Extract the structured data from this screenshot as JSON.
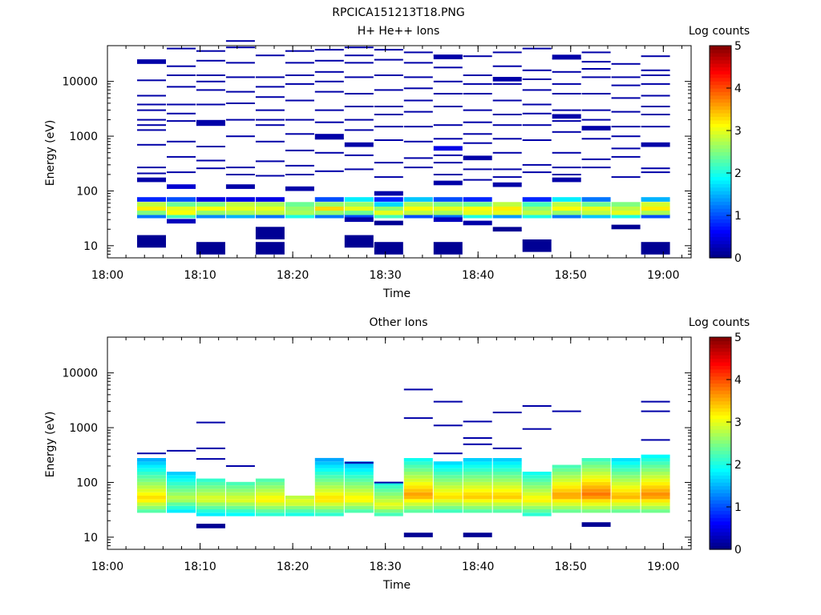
{
  "page_title": "RPCICA151213T18.PNG",
  "chart_data": [
    {
      "type": "heatmap",
      "title": "H+ He++ Ions",
      "xlabel": "Time",
      "ylabel": "Energy (eV)",
      "yscale": "log",
      "ylim": [
        6,
        45000
      ],
      "xlim": [
        "18:00",
        "19:03"
      ],
      "x_ticks": [
        "18:00",
        "18:10",
        "18:20",
        "18:30",
        "18:40",
        "18:50",
        "19:00"
      ],
      "y_ticks": [
        "10",
        "100",
        "1000",
        "10000"
      ],
      "colorbar": {
        "label": "Log counts",
        "min": 0,
        "max": 5,
        "ticks": [
          "0",
          "1",
          "2",
          "3",
          "4",
          "5"
        ]
      },
      "time_bins_start_min": [
        3.2,
        6.4,
        9.6,
        12.8,
        16.0,
        19.2,
        22.4,
        25.6,
        28.8,
        32.0,
        35.2,
        38.4,
        41.6,
        44.8,
        48.0,
        51.2,
        54.4,
        57.6
      ],
      "bin_width_min": 3.2,
      "cells": [
        {
          "t": 0,
          "e": 35,
          "v": 1.2
        },
        {
          "t": 0,
          "e": 40,
          "v": 2.5
        },
        {
          "t": 0,
          "e": 48,
          "v": 3.2
        },
        {
          "t": 0,
          "e": 57,
          "v": 2.8
        },
        {
          "t": 0,
          "e": 70,
          "v": 0.8
        },
        {
          "t": 1,
          "e": 35,
          "v": 2.2
        },
        {
          "t": 1,
          "e": 40,
          "v": 3.1
        },
        {
          "t": 1,
          "e": 48,
          "v": 3.0
        },
        {
          "t": 1,
          "e": 57,
          "v": 2.4
        },
        {
          "t": 1,
          "e": 70,
          "v": 1.0
        },
        {
          "t": 2,
          "e": 35,
          "v": 1.3
        },
        {
          "t": 2,
          "e": 40,
          "v": 2.6
        },
        {
          "t": 2,
          "e": 48,
          "v": 3.1
        },
        {
          "t": 2,
          "e": 57,
          "v": 2.5
        },
        {
          "t": 2,
          "e": 70,
          "v": 0.5
        },
        {
          "t": 3,
          "e": 35,
          "v": 1.5
        },
        {
          "t": 3,
          "e": 40,
          "v": 2.7
        },
        {
          "t": 3,
          "e": 48,
          "v": 3.0
        },
        {
          "t": 3,
          "e": 57,
          "v": 2.8
        },
        {
          "t": 3,
          "e": 70,
          "v": 0.5
        },
        {
          "t": 4,
          "e": 35,
          "v": 1.2
        },
        {
          "t": 4,
          "e": 40,
          "v": 2.8
        },
        {
          "t": 4,
          "e": 48,
          "v": 3.0
        },
        {
          "t": 4,
          "e": 57,
          "v": 2.7
        },
        {
          "t": 4,
          "e": 70,
          "v": 0.5
        },
        {
          "t": 5,
          "e": 35,
          "v": 2.0
        },
        {
          "t": 5,
          "e": 40,
          "v": 2.7
        },
        {
          "t": 5,
          "e": 48,
          "v": 2.6
        },
        {
          "t": 5,
          "e": 57,
          "v": 2.4
        },
        {
          "t": 6,
          "e": 35,
          "v": 1.2
        },
        {
          "t": 6,
          "e": 40,
          "v": 2.6
        },
        {
          "t": 6,
          "e": 48,
          "v": 3.3
        },
        {
          "t": 6,
          "e": 57,
          "v": 2.6
        },
        {
          "t": 6,
          "e": 70,
          "v": 1.0
        },
        {
          "t": 7,
          "e": 35,
          "v": 1.0
        },
        {
          "t": 7,
          "e": 40,
          "v": 2.4
        },
        {
          "t": 7,
          "e": 48,
          "v": 3.0
        },
        {
          "t": 7,
          "e": 57,
          "v": 2.6
        },
        {
          "t": 7,
          "e": 70,
          "v": 1.8
        },
        {
          "t": 8,
          "e": 35,
          "v": 2.2
        },
        {
          "t": 8,
          "e": 40,
          "v": 3.0
        },
        {
          "t": 8,
          "e": 48,
          "v": 2.6
        },
        {
          "t": 8,
          "e": 57,
          "v": 1.7
        },
        {
          "t": 8,
          "e": 70,
          "v": 0.8
        },
        {
          "t": 9,
          "e": 35,
          "v": 1.0
        },
        {
          "t": 9,
          "e": 40,
          "v": 2.8
        },
        {
          "t": 9,
          "e": 48,
          "v": 3.1
        },
        {
          "t": 9,
          "e": 57,
          "v": 2.7
        },
        {
          "t": 9,
          "e": 70,
          "v": 1.6
        },
        {
          "t": 10,
          "e": 35,
          "v": 1.2
        },
        {
          "t": 10,
          "e": 40,
          "v": 2.7
        },
        {
          "t": 10,
          "e": 48,
          "v": 3.0
        },
        {
          "t": 10,
          "e": 57,
          "v": 2.5
        },
        {
          "t": 10,
          "e": 70,
          "v": 1.0
        },
        {
          "t": 11,
          "e": 35,
          "v": 2.0
        },
        {
          "t": 11,
          "e": 40,
          "v": 3.0
        },
        {
          "t": 11,
          "e": 48,
          "v": 3.1
        },
        {
          "t": 11,
          "e": 57,
          "v": 2.4
        },
        {
          "t": 11,
          "e": 70,
          "v": 0.8
        },
        {
          "t": 12,
          "e": 35,
          "v": 1.4
        },
        {
          "t": 12,
          "e": 40,
          "v": 3.0
        },
        {
          "t": 12,
          "e": 48,
          "v": 3.2
        },
        {
          "t": 12,
          "e": 57,
          "v": 2.8
        },
        {
          "t": 13,
          "e": 35,
          "v": 2.0
        },
        {
          "t": 13,
          "e": 40,
          "v": 2.8
        },
        {
          "t": 13,
          "e": 48,
          "v": 2.6
        },
        {
          "t": 13,
          "e": 57,
          "v": 2.2
        },
        {
          "t": 13,
          "e": 70,
          "v": 0.8
        },
        {
          "t": 14,
          "e": 35,
          "v": 1.2
        },
        {
          "t": 14,
          "e": 40,
          "v": 2.6
        },
        {
          "t": 14,
          "e": 48,
          "v": 3.1
        },
        {
          "t": 14,
          "e": 57,
          "v": 2.8
        },
        {
          "t": 14,
          "e": 70,
          "v": 1.8
        },
        {
          "t": 15,
          "e": 35,
          "v": 1.6
        },
        {
          "t": 15,
          "e": 40,
          "v": 2.8
        },
        {
          "t": 15,
          "e": 48,
          "v": 3.0
        },
        {
          "t": 15,
          "e": 57,
          "v": 2.4
        },
        {
          "t": 15,
          "e": 70,
          "v": 1.2
        },
        {
          "t": 16,
          "e": 35,
          "v": 2.0
        },
        {
          "t": 16,
          "e": 40,
          "v": 3.0
        },
        {
          "t": 16,
          "e": 48,
          "v": 2.8
        },
        {
          "t": 16,
          "e": 57,
          "v": 2.5
        },
        {
          "t": 17,
          "e": 35,
          "v": 1.0
        },
        {
          "t": 17,
          "e": 40,
          "v": 2.7
        },
        {
          "t": 17,
          "e": 48,
          "v": 3.2
        },
        {
          "t": 17,
          "e": 57,
          "v": 2.9
        },
        {
          "t": 17,
          "e": 70,
          "v": 1.5
        },
        {
          "t": 0,
          "e": 12,
          "v": 0.1
        },
        {
          "t": 2,
          "e": 9,
          "v": 0.1
        },
        {
          "t": 4,
          "e": 9,
          "v": 0.1
        },
        {
          "t": 4,
          "e": 17,
          "v": 0.1
        },
        {
          "t": 7,
          "e": 12,
          "v": 0.1
        },
        {
          "t": 8,
          "e": 9,
          "v": 0.1
        },
        {
          "t": 10,
          "e": 9,
          "v": 0.1
        },
        {
          "t": 13,
          "e": 10,
          "v": 0.1
        },
        {
          "t": 16,
          "e": 22,
          "v": 0.1
        },
        {
          "t": 17,
          "e": 9,
          "v": 0.1
        },
        {
          "t": 12,
          "e": 20,
          "v": 0.1
        },
        {
          "t": 8,
          "e": 26,
          "v": 0.1
        },
        {
          "t": 7,
          "e": 30,
          "v": 0.2
        },
        {
          "t": 10,
          "e": 30,
          "v": 0.3
        },
        {
          "t": 11,
          "e": 26,
          "v": 0.2
        },
        {
          "t": 1,
          "e": 28,
          "v": 0.3
        },
        {
          "t": 0,
          "e": 160,
          "v": 0.2
        },
        {
          "t": 1,
          "e": 120,
          "v": 0.4
        },
        {
          "t": 3,
          "e": 120,
          "v": 0.2
        },
        {
          "t": 5,
          "e": 110,
          "v": 0.2
        },
        {
          "t": 8,
          "e": 90,
          "v": 0.2
        },
        {
          "t": 10,
          "e": 140,
          "v": 0.2
        },
        {
          "t": 12,
          "e": 130,
          "v": 0.2
        },
        {
          "t": 14,
          "e": 160,
          "v": 0.2
        },
        {
          "t": 10,
          "e": 600,
          "v": 0.5
        },
        {
          "t": 11,
          "e": 400,
          "v": 0.2
        },
        {
          "t": 6,
          "e": 1000,
          "v": 0.2
        },
        {
          "t": 2,
          "e": 1800,
          "v": 0.2
        },
        {
          "t": 14,
          "e": 2300,
          "v": 0.2
        },
        {
          "t": 15,
          "e": 1400,
          "v": 0.2
        },
        {
          "t": 17,
          "e": 700,
          "v": 0.2
        },
        {
          "t": 0,
          "e": 23000,
          "v": 0.2
        },
        {
          "t": 10,
          "e": 28000,
          "v": 0.2
        },
        {
          "t": 14,
          "e": 28000,
          "v": 0.2
        },
        {
          "t": 12,
          "e": 11000,
          "v": 0.2
        },
        {
          "t": 7,
          "e": 700,
          "v": 0.2
        }
      ],
      "sparse_lines": {
        "value": 0.2,
        "bins_per_column": [
          [
            5500,
            3000,
            2000,
            1600,
            1300,
            700,
            270,
            210,
            10500,
            3800
          ],
          [
            40000,
            19000,
            8000,
            3800,
            2600,
            1900,
            800,
            420,
            220,
            13000
          ],
          [
            36000,
            24000,
            13000,
            10000,
            7000,
            3800,
            1600,
            650,
            360,
            260
          ],
          [
            42000,
            22000,
            12000,
            6500,
            4000,
            2000,
            1000,
            270,
            200,
            55000
          ],
          [
            30000,
            12000,
            8000,
            5200,
            3000,
            1600,
            800,
            350,
            190,
            2000
          ],
          [
            36000,
            22000,
            9000,
            4500,
            2000,
            1100,
            550,
            290,
            200,
            13000
          ],
          [
            38000,
            24000,
            10000,
            6500,
            3000,
            1800,
            900,
            500,
            230,
            15000
          ],
          [
            42000,
            30000,
            12000,
            6000,
            3500,
            2000,
            1300,
            450,
            250,
            22000
          ],
          [
            38000,
            25000,
            7000,
            3500,
            2500,
            1500,
            850,
            330,
            180,
            13000
          ],
          [
            34000,
            22000,
            12000,
            7500,
            4500,
            2800,
            1500,
            800,
            400,
            270
          ],
          [
            30000,
            18000,
            10000,
            6000,
            3500,
            1600,
            900,
            450,
            330,
            200
          ],
          [
            29000,
            13000,
            6000,
            3000,
            1800,
            1100,
            750,
            250,
            160,
            9000
          ],
          [
            34000,
            19000,
            9000,
            4500,
            2500,
            1600,
            900,
            500,
            250,
            180
          ],
          [
            40000,
            16000,
            7000,
            3800,
            2600,
            1600,
            850,
            300,
            220,
            11000
          ],
          [
            26000,
            15000,
            6000,
            3000,
            1900,
            1200,
            500,
            270,
            200,
            9000
          ],
          [
            34000,
            23000,
            12000,
            6000,
            3000,
            2000,
            900,
            380,
            270,
            17000
          ],
          [
            21000,
            8500,
            5000,
            2800,
            1500,
            1000,
            600,
            180,
            420,
            12000
          ],
          [
            29000,
            16000,
            9000,
            5500,
            3500,
            2500,
            1500,
            260,
            220,
            13000
          ]
        ]
      }
    },
    {
      "type": "heatmap",
      "title": "Other Ions",
      "xlabel": "Time",
      "ylabel": "Energy (eV)",
      "yscale": "log",
      "ylim": [
        6,
        45000
      ],
      "xlim": [
        "18:00",
        "19:03"
      ],
      "x_ticks": [
        "18:00",
        "18:10",
        "18:20",
        "18:30",
        "18:40",
        "18:50",
        "19:00"
      ],
      "y_ticks": [
        "10",
        "100",
        "1000",
        "10000"
      ],
      "colorbar": {
        "label": "Log counts",
        "min": 0,
        "max": 5,
        "ticks": [
          "0",
          "1",
          "2",
          "3",
          "4",
          "5"
        ]
      },
      "time_bins_start_min": [
        3.2,
        6.4,
        9.6,
        12.8,
        16.0,
        19.2,
        22.4,
        25.6,
        28.8,
        32.0,
        35.2,
        38.4,
        41.6,
        44.8,
        48.0,
        51.2,
        54.4,
        57.6
      ],
      "bin_width_min": 3.2,
      "profiles": [
        {
          "t": 0,
          "lo": 30,
          "hi": 300,
          "peak": 3.3,
          "peak_e": 52
        },
        {
          "t": 1,
          "lo": 30,
          "hi": 150,
          "peak": 2.8,
          "peak_e": 52
        },
        {
          "t": 2,
          "lo": 26,
          "hi": 110,
          "peak": 3.0,
          "peak_e": 50
        },
        {
          "t": 3,
          "lo": 26,
          "hi": 100,
          "peak": 3.0,
          "peak_e": 48
        },
        {
          "t": 4,
          "lo": 26,
          "hi": 110,
          "peak": 3.2,
          "peak_e": 48
        },
        {
          "t": 5,
          "lo": 26,
          "hi": 60,
          "peak": 3.0,
          "peak_e": 45
        },
        {
          "t": 6,
          "lo": 26,
          "hi": 280,
          "peak": 3.3,
          "peak_e": 50
        },
        {
          "t": 7,
          "lo": 30,
          "hi": 240,
          "peak": 3.2,
          "peak_e": 50
        },
        {
          "t": 8,
          "lo": 26,
          "hi": 100,
          "peak": 3.0,
          "peak_e": 40
        },
        {
          "t": 9,
          "lo": 30,
          "hi": 280,
          "peak": 3.6,
          "peak_e": 60
        },
        {
          "t": 10,
          "lo": 30,
          "hi": 250,
          "peak": 3.3,
          "peak_e": 55
        },
        {
          "t": 11,
          "lo": 30,
          "hi": 300,
          "peak": 3.4,
          "peak_e": 55
        },
        {
          "t": 12,
          "lo": 30,
          "hi": 270,
          "peak": 3.4,
          "peak_e": 55
        },
        {
          "t": 13,
          "lo": 26,
          "hi": 150,
          "peak": 3.2,
          "peak_e": 48
        },
        {
          "t": 14,
          "lo": 30,
          "hi": 200,
          "peak": 3.6,
          "peak_e": 58
        },
        {
          "t": 15,
          "lo": 30,
          "hi": 260,
          "peak": 3.8,
          "peak_e": 62
        },
        {
          "t": 16,
          "lo": 30,
          "hi": 280,
          "peak": 3.5,
          "peak_e": 55
        },
        {
          "t": 17,
          "lo": 30,
          "hi": 320,
          "peak": 3.7,
          "peak_e": 60
        }
      ],
      "sparse_lines": {
        "value": 0.2,
        "points": [
          {
            "t": 0,
            "e": 340
          },
          {
            "t": 1,
            "e": 380
          },
          {
            "t": 2,
            "e": 1250
          },
          {
            "t": 2,
            "e": 420
          },
          {
            "t": 2,
            "e": 270
          },
          {
            "t": 3,
            "e": 200
          },
          {
            "t": 7,
            "e": 230
          },
          {
            "t": 9,
            "e": 5000
          },
          {
            "t": 9,
            "e": 1500
          },
          {
            "t": 10,
            "e": 3000
          },
          {
            "t": 10,
            "e": 1100
          },
          {
            "t": 10,
            "e": 340
          },
          {
            "t": 11,
            "e": 1300
          },
          {
            "t": 11,
            "e": 650
          },
          {
            "t": 11,
            "e": 500
          },
          {
            "t": 12,
            "e": 1900
          },
          {
            "t": 12,
            "e": 420
          },
          {
            "t": 13,
            "e": 2500
          },
          {
            "t": 13,
            "e": 950
          },
          {
            "t": 14,
            "e": 2000
          },
          {
            "t": 17,
            "e": 3000
          },
          {
            "t": 17,
            "e": 2000
          },
          {
            "t": 17,
            "e": 600
          },
          {
            "t": 8,
            "e": 100
          }
        ],
        "low_blocks": [
          {
            "t": 2,
            "e": 16
          },
          {
            "t": 9,
            "e": 11
          },
          {
            "t": 11,
            "e": 11
          },
          {
            "t": 15,
            "e": 17
          }
        ]
      }
    }
  ]
}
